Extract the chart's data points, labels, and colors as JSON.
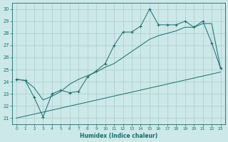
{
  "xlabel": "Humidex (Indice chaleur)",
  "bg_color": "#cce8e8",
  "grid_color": "#aacccc",
  "line_color": "#1a6b6b",
  "xlim": [
    -0.5,
    23.5
  ],
  "ylim": [
    20.5,
    30.5
  ],
  "xticks": [
    0,
    1,
    2,
    3,
    4,
    5,
    6,
    7,
    8,
    9,
    10,
    11,
    12,
    13,
    14,
    15,
    16,
    17,
    18,
    19,
    20,
    21,
    22,
    23
  ],
  "yticks": [
    21,
    22,
    23,
    24,
    25,
    26,
    27,
    28,
    29,
    30
  ],
  "main_line_x": [
    0,
    1,
    2,
    3,
    4,
    5,
    6,
    7,
    8,
    9,
    10,
    11,
    12,
    13,
    14,
    15,
    16,
    17,
    18,
    19,
    20,
    21,
    22,
    23
  ],
  "main_line_y": [
    24.2,
    24.1,
    22.7,
    21.1,
    23.0,
    23.3,
    23.1,
    23.2,
    24.4,
    24.9,
    25.5,
    27.0,
    28.1,
    28.1,
    28.6,
    30.0,
    28.7,
    28.7,
    28.7,
    29.0,
    28.5,
    29.0,
    27.2,
    25.1
  ],
  "upper_line_x": [
    0,
    1,
    2,
    3,
    4,
    5,
    6,
    7,
    8,
    9,
    10,
    11,
    12,
    13,
    14,
    15,
    16,
    17,
    18,
    19,
    20,
    21,
    22,
    23
  ],
  "upper_line_y": [
    24.2,
    24.1,
    23.5,
    22.5,
    22.8,
    23.2,
    23.8,
    24.2,
    24.5,
    24.8,
    25.2,
    25.5,
    26.0,
    26.5,
    27.0,
    27.5,
    27.8,
    28.0,
    28.2,
    28.5,
    28.5,
    28.8,
    28.8,
    25.1
  ],
  "lower_line_x": [
    0,
    23
  ],
  "lower_line_y": [
    21.0,
    24.8
  ]
}
